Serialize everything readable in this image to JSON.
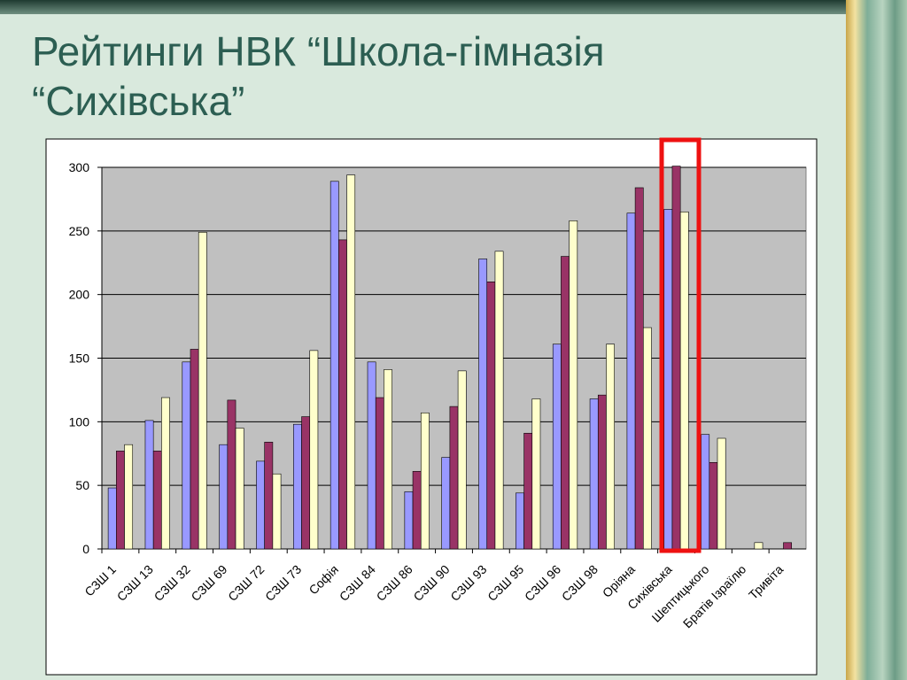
{
  "title_lines": [
    "Рейтинги НВК “Школа-гімназія",
    "“Сихівська”"
  ],
  "chart_data": {
    "type": "bar",
    "categories": [
      "СЗШ 1",
      "СЗШ 13",
      "СЗШ 32",
      "СЗШ 69",
      "СЗШ 72",
      "СЗШ 73",
      "Софія",
      "СЗШ 84",
      "СЗШ 86",
      "СЗШ 90",
      "СЗШ 93",
      "СЗШ 95",
      "СЗШ 96",
      "СЗШ 98",
      "Оріяна",
      "Сихівська",
      "Шептицького",
      "Братів Ізраїлю",
      "Тривіта"
    ],
    "series": [
      {
        "color": "#9999ff",
        "values": [
          48,
          101,
          147,
          82,
          69,
          98,
          289,
          147,
          45,
          72,
          228,
          44,
          161,
          118,
          264,
          267,
          90,
          null,
          null
        ]
      },
      {
        "color": "#993366",
        "values": [
          77,
          77,
          157,
          117,
          84,
          104,
          243,
          119,
          61,
          112,
          210,
          91,
          230,
          121,
          284,
          301,
          68,
          null,
          5
        ]
      },
      {
        "color": "#ffffcc",
        "values": [
          82,
          119,
          249,
          95,
          59,
          156,
          294,
          141,
          107,
          140,
          234,
          118,
          258,
          161,
          174,
          265,
          87,
          5,
          null
        ]
      }
    ],
    "ylim": [
      0,
      300
    ],
    "yticks": [
      0,
      50,
      100,
      150,
      200,
      250,
      300
    ],
    "grid": true
  }
}
